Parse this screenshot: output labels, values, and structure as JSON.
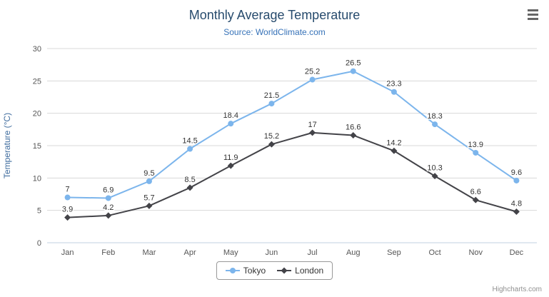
{
  "credits": "Highcharts.com",
  "colors": {
    "title": "#274b6d",
    "subtitle": "#3672b8",
    "axis_label": "#555555",
    "axis_title": "#3f6c9e",
    "grid": "#d8d8d8",
    "axis_line": "#c0d0e0",
    "data_label": "#333333",
    "legend_border": "#999999",
    "credits": "#909090",
    "menu_icon": "#666666"
  },
  "chart_data": {
    "type": "line",
    "title": "Monthly Average Temperature",
    "subtitle": "Source: WorldClimate.com",
    "categories": [
      "Jan",
      "Feb",
      "Mar",
      "Apr",
      "May",
      "Jun",
      "Jul",
      "Aug",
      "Sep",
      "Oct",
      "Nov",
      "Dec"
    ],
    "series": [
      {
        "name": "Tokyo",
        "color": "#7cb5ec",
        "marker": "circle",
        "values": [
          7,
          6.9,
          9.5,
          14.5,
          18.4,
          21.5,
          25.2,
          26.5,
          23.3,
          18.3,
          13.9,
          9.6
        ]
      },
      {
        "name": "London",
        "color": "#434348",
        "marker": "diamond",
        "values": [
          3.9,
          4.2,
          5.7,
          8.5,
          11.9,
          15.2,
          17,
          16.6,
          14.2,
          10.3,
          6.6,
          4.8
        ]
      }
    ],
    "xlabel": "",
    "ylabel": "Temperature (°C)",
    "ylim": [
      0,
      30
    ],
    "ytick_interval": 5,
    "grid": true,
    "data_labels": true,
    "legend_position": "bottom"
  }
}
